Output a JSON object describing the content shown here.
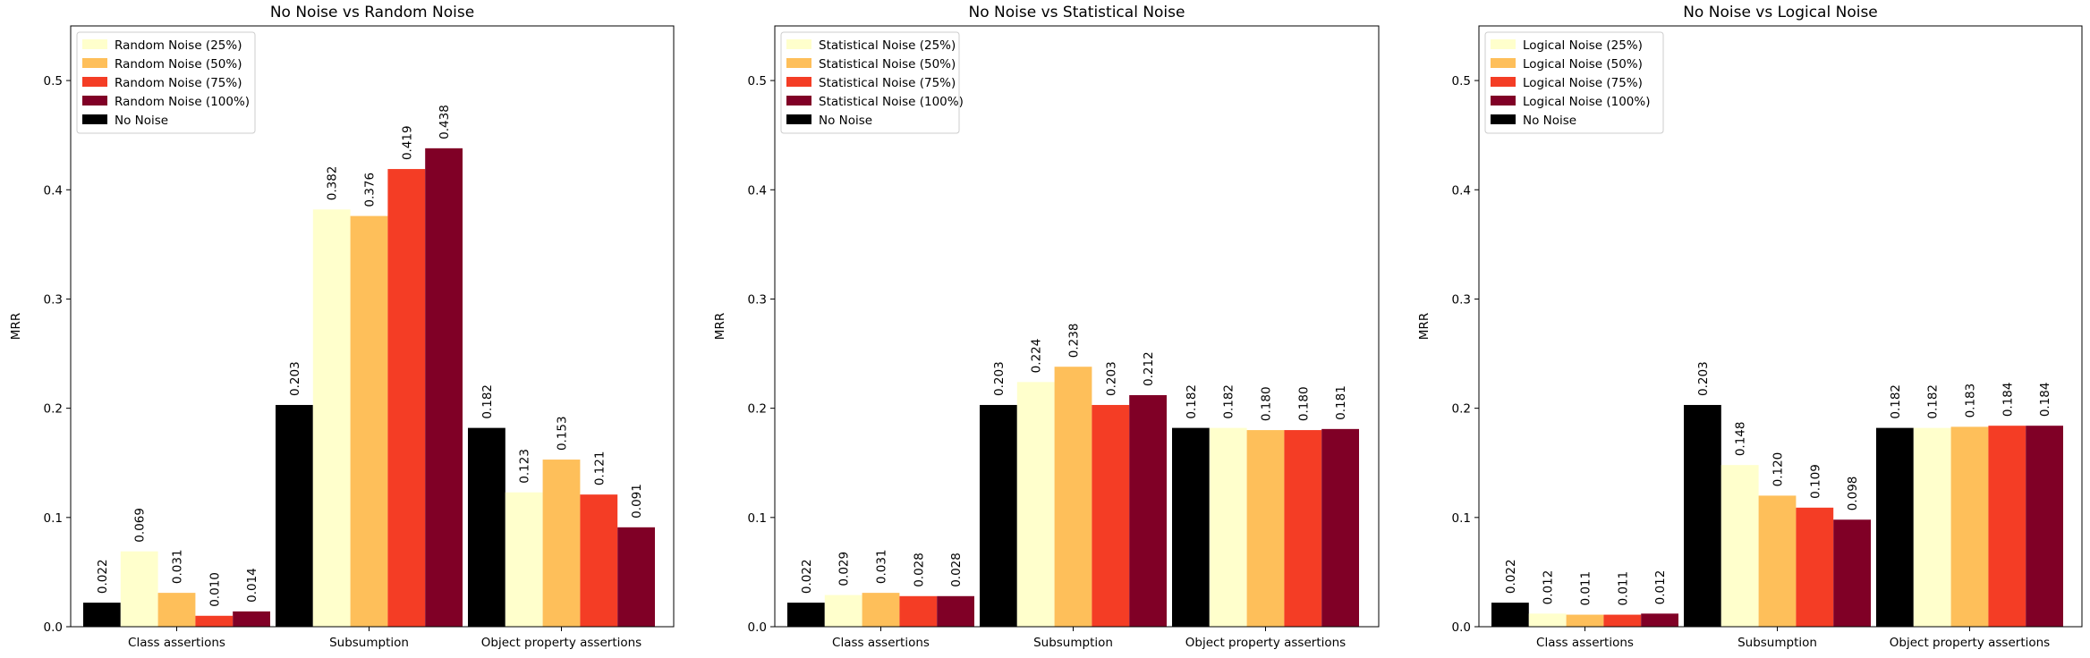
{
  "colors": {
    "no_noise": "#000000",
    "noise_25": "#ffffcc",
    "noise_50": "#febf5a",
    "noise_75": "#f43d25",
    "noise_100": "#800026"
  },
  "chart_data": [
    {
      "type": "bar",
      "title": "No Noise vs Random Noise",
      "xlabel": "",
      "ylabel": "MRR",
      "ylim": [
        0,
        0.55
      ],
      "yticks": [
        "0.0",
        "0.1",
        "0.2",
        "0.3",
        "0.4",
        "0.5"
      ],
      "ytick_values": [
        0,
        0.1,
        0.2,
        0.3,
        0.4,
        0.5
      ],
      "legend_position": "top-left",
      "grid": false,
      "categories": [
        "Class assertions",
        "Subsumption",
        "Object property assertions"
      ],
      "series": [
        {
          "name": "No Noise",
          "color": "#000000",
          "values": [
            0.022,
            0.203,
            0.182
          ],
          "labels": [
            "0.022",
            "0.203",
            "0.182"
          ]
        },
        {
          "name": "Random Noise (25%)",
          "color": "#ffffcc",
          "values": [
            0.069,
            0.382,
            0.123
          ],
          "labels": [
            "0.069",
            "0.382",
            "0.123"
          ]
        },
        {
          "name": "Random Noise (50%)",
          "color": "#febf5a",
          "values": [
            0.031,
            0.376,
            0.153
          ],
          "labels": [
            "0.031",
            "0.376",
            "0.153"
          ]
        },
        {
          "name": "Random Noise (75%)",
          "color": "#f43d25",
          "values": [
            0.01,
            0.419,
            0.121
          ],
          "labels": [
            "0.010",
            "0.419",
            "0.121"
          ]
        },
        {
          "name": "Random Noise (100%)",
          "color": "#800026",
          "values": [
            0.014,
            0.438,
            0.091
          ],
          "labels": [
            "0.014",
            "0.438",
            "0.091"
          ]
        }
      ],
      "legend_order": [
        "Random Noise (25%)",
        "Random Noise (50%)",
        "Random Noise (75%)",
        "Random Noise (100%)",
        "No Noise"
      ]
    },
    {
      "type": "bar",
      "title": "No Noise vs Statistical Noise",
      "xlabel": "",
      "ylabel": "MRR",
      "ylim": [
        0,
        0.55
      ],
      "yticks": [
        "0.0",
        "0.1",
        "0.2",
        "0.3",
        "0.4",
        "0.5"
      ],
      "ytick_values": [
        0,
        0.1,
        0.2,
        0.3,
        0.4,
        0.5
      ],
      "legend_position": "top-left",
      "grid": false,
      "categories": [
        "Class assertions",
        "Subsumption",
        "Object property assertions"
      ],
      "series": [
        {
          "name": "No Noise",
          "color": "#000000",
          "values": [
            0.022,
            0.203,
            0.182
          ],
          "labels": [
            "0.022",
            "0.203",
            "0.182"
          ]
        },
        {
          "name": "Statistical Noise (25%)",
          "color": "#ffffcc",
          "values": [
            0.029,
            0.224,
            0.182
          ],
          "labels": [
            "0.029",
            "0.224",
            "0.182"
          ]
        },
        {
          "name": "Statistical Noise (50%)",
          "color": "#febf5a",
          "values": [
            0.031,
            0.238,
            0.18
          ],
          "labels": [
            "0.031",
            "0.238",
            "0.180"
          ]
        },
        {
          "name": "Statistical Noise (75%)",
          "color": "#f43d25",
          "values": [
            0.028,
            0.203,
            0.18
          ],
          "labels": [
            "0.028",
            "0.203",
            "0.180"
          ]
        },
        {
          "name": "Statistical Noise (100%)",
          "color": "#800026",
          "values": [
            0.028,
            0.212,
            0.181
          ],
          "labels": [
            "0.028",
            "0.212",
            "0.181"
          ]
        }
      ],
      "legend_order": [
        "Statistical Noise (25%)",
        "Statistical Noise (50%)",
        "Statistical Noise (75%)",
        "Statistical Noise (100%)",
        "No Noise"
      ]
    },
    {
      "type": "bar",
      "title": "No Noise vs Logical Noise",
      "xlabel": "",
      "ylabel": "MRR",
      "ylim": [
        0,
        0.55
      ],
      "yticks": [
        "0.0",
        "0.1",
        "0.2",
        "0.3",
        "0.4",
        "0.5"
      ],
      "ytick_values": [
        0,
        0.1,
        0.2,
        0.3,
        0.4,
        0.5
      ],
      "legend_position": "top-left",
      "grid": false,
      "categories": [
        "Class assertions",
        "Subsumption",
        "Object property assertions"
      ],
      "series": [
        {
          "name": "No Noise",
          "color": "#000000",
          "values": [
            0.022,
            0.203,
            0.182
          ],
          "labels": [
            "0.022",
            "0.203",
            "0.182"
          ]
        },
        {
          "name": "Logical Noise (25%)",
          "color": "#ffffcc",
          "values": [
            0.012,
            0.148,
            0.182
          ],
          "labels": [
            "0.012",
            "0.148",
            "0.182"
          ]
        },
        {
          "name": "Logical Noise (50%)",
          "color": "#febf5a",
          "values": [
            0.011,
            0.12,
            0.183
          ],
          "labels": [
            "0.011",
            "0.120",
            "0.183"
          ]
        },
        {
          "name": "Logical Noise (75%)",
          "color": "#f43d25",
          "values": [
            0.011,
            0.109,
            0.184
          ],
          "labels": [
            "0.011",
            "0.109",
            "0.184"
          ]
        },
        {
          "name": "Logical Noise (100%)",
          "color": "#800026",
          "values": [
            0.012,
            0.098,
            0.184
          ],
          "labels": [
            "0.012",
            "0.098",
            "0.184"
          ]
        }
      ],
      "legend_order": [
        "Logical Noise (25%)",
        "Logical Noise (50%)",
        "Logical Noise (75%)",
        "Logical Noise (100%)",
        "No Noise"
      ]
    }
  ]
}
